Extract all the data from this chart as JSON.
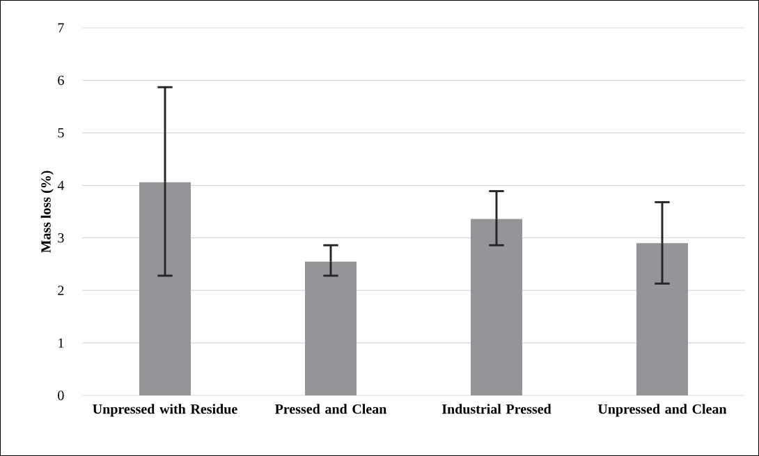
{
  "chart_data": {
    "type": "bar",
    "ylabel": "Mass loss (%)",
    "categories": [
      "Unpressed with Residue",
      "Pressed and Clean",
      "Industrial Pressed",
      "Unpressed and Clean"
    ],
    "values": [
      4.06,
      2.55,
      3.36,
      2.9
    ],
    "errors": [
      [
        2.28,
        5.87
      ],
      [
        2.28,
        2.86
      ],
      [
        2.86,
        3.89
      ],
      [
        2.13,
        3.68
      ]
    ],
    "color": "#939598",
    "ylim": [
      0,
      7
    ],
    "yticks": [
      0,
      1,
      2,
      3,
      4,
      5,
      6,
      7
    ],
    "grid": "y"
  }
}
